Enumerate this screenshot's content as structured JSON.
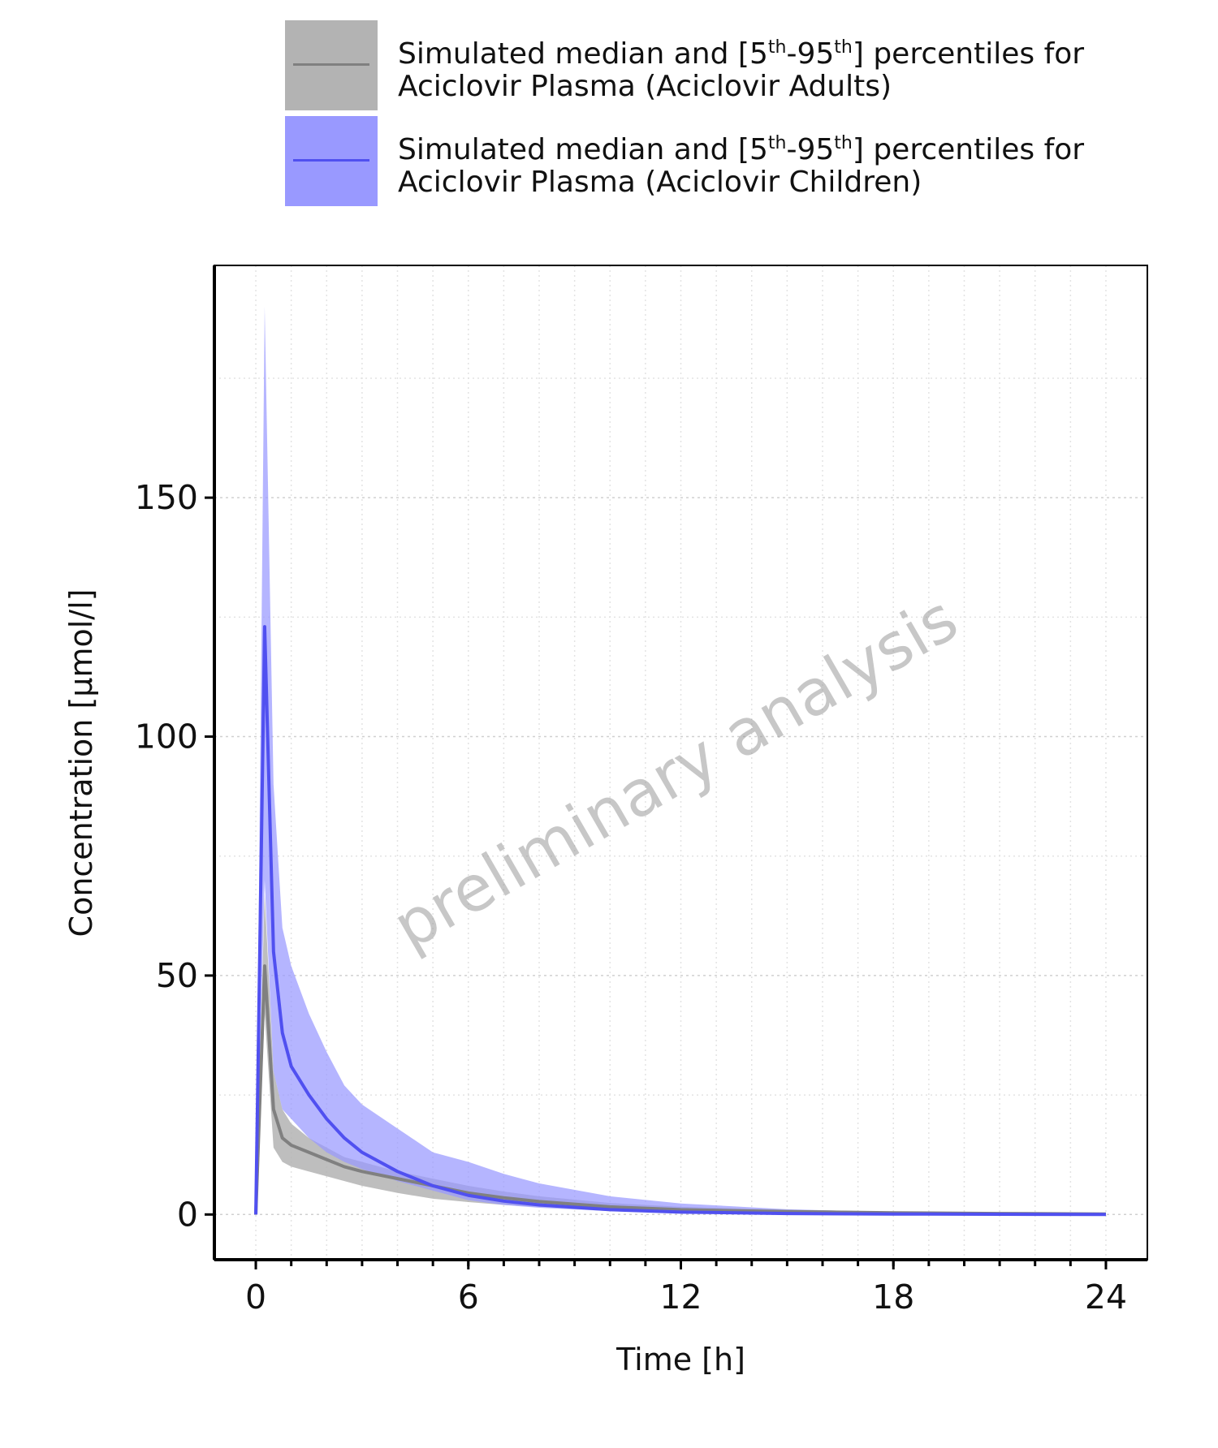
{
  "chart_data": {
    "type": "line",
    "xlabel": "Time [h]",
    "ylabel": "Concentration [µmol/l]",
    "watermark": "preliminary analysis",
    "x": [
      0,
      0.25,
      0.5,
      0.75,
      1,
      1.5,
      2,
      2.5,
      3,
      4,
      5,
      6,
      7,
      8,
      10,
      12,
      15,
      18,
      21,
      24
    ],
    "series": [
      {
        "name": "Simulated median and [5th-95th] percentiles for Aciclovir Plasma (Aciclovir Adults)",
        "color": "#808080",
        "band_color": "#b3b3b3",
        "values": [
          0,
          52,
          22,
          16,
          14.5,
          13,
          11.5,
          10,
          9,
          7.5,
          6,
          4.5,
          3.5,
          2.7,
          1.6,
          1,
          0.6,
          0.35,
          0.2,
          0.1
        ],
        "lower": [
          0,
          42,
          14,
          11,
          10,
          9,
          8,
          7,
          6,
          4.5,
          3.3,
          2.6,
          2,
          1.6,
          1,
          0.6,
          0.35,
          0.2,
          0.12,
          0.06
        ],
        "upper": [
          0,
          67,
          30,
          22,
          19,
          16,
          14,
          12,
          11,
          9,
          7.5,
          6,
          4.8,
          3.8,
          2.4,
          1.6,
          1,
          0.6,
          0.35,
          0.2
        ]
      },
      {
        "name": "Simulated median and [5th-95th] percentiles for Aciclovir Plasma (Aciclovir Children)",
        "color": "#5050f0",
        "band_color": "#9999ff",
        "values": [
          0,
          123,
          55,
          38,
          31,
          25,
          20,
          16,
          13,
          9,
          6,
          4,
          2.8,
          2,
          1,
          0.5,
          0.2,
          0.1,
          0.05,
          0
        ],
        "lower": [
          0,
          70,
          30,
          22,
          20,
          16,
          13,
          11,
          9.5,
          7,
          5,
          3,
          2,
          1.4,
          0.7,
          0.3,
          0.1,
          0.05,
          0.02,
          0
        ],
        "upper": [
          0,
          190,
          90,
          60,
          52,
          42,
          34,
          27,
          23,
          18,
          13,
          11,
          8.5,
          6.5,
          3.8,
          2.3,
          1.1,
          0.5,
          0.2,
          0.1
        ]
      }
    ],
    "xlim": [
      -1.17,
      25.17
    ],
    "ylim": [
      -9.46,
      198.6
    ],
    "xticks": [
      0,
      6,
      12,
      18,
      24
    ],
    "yticks": [
      0,
      50,
      100,
      150
    ],
    "grid": true
  }
}
